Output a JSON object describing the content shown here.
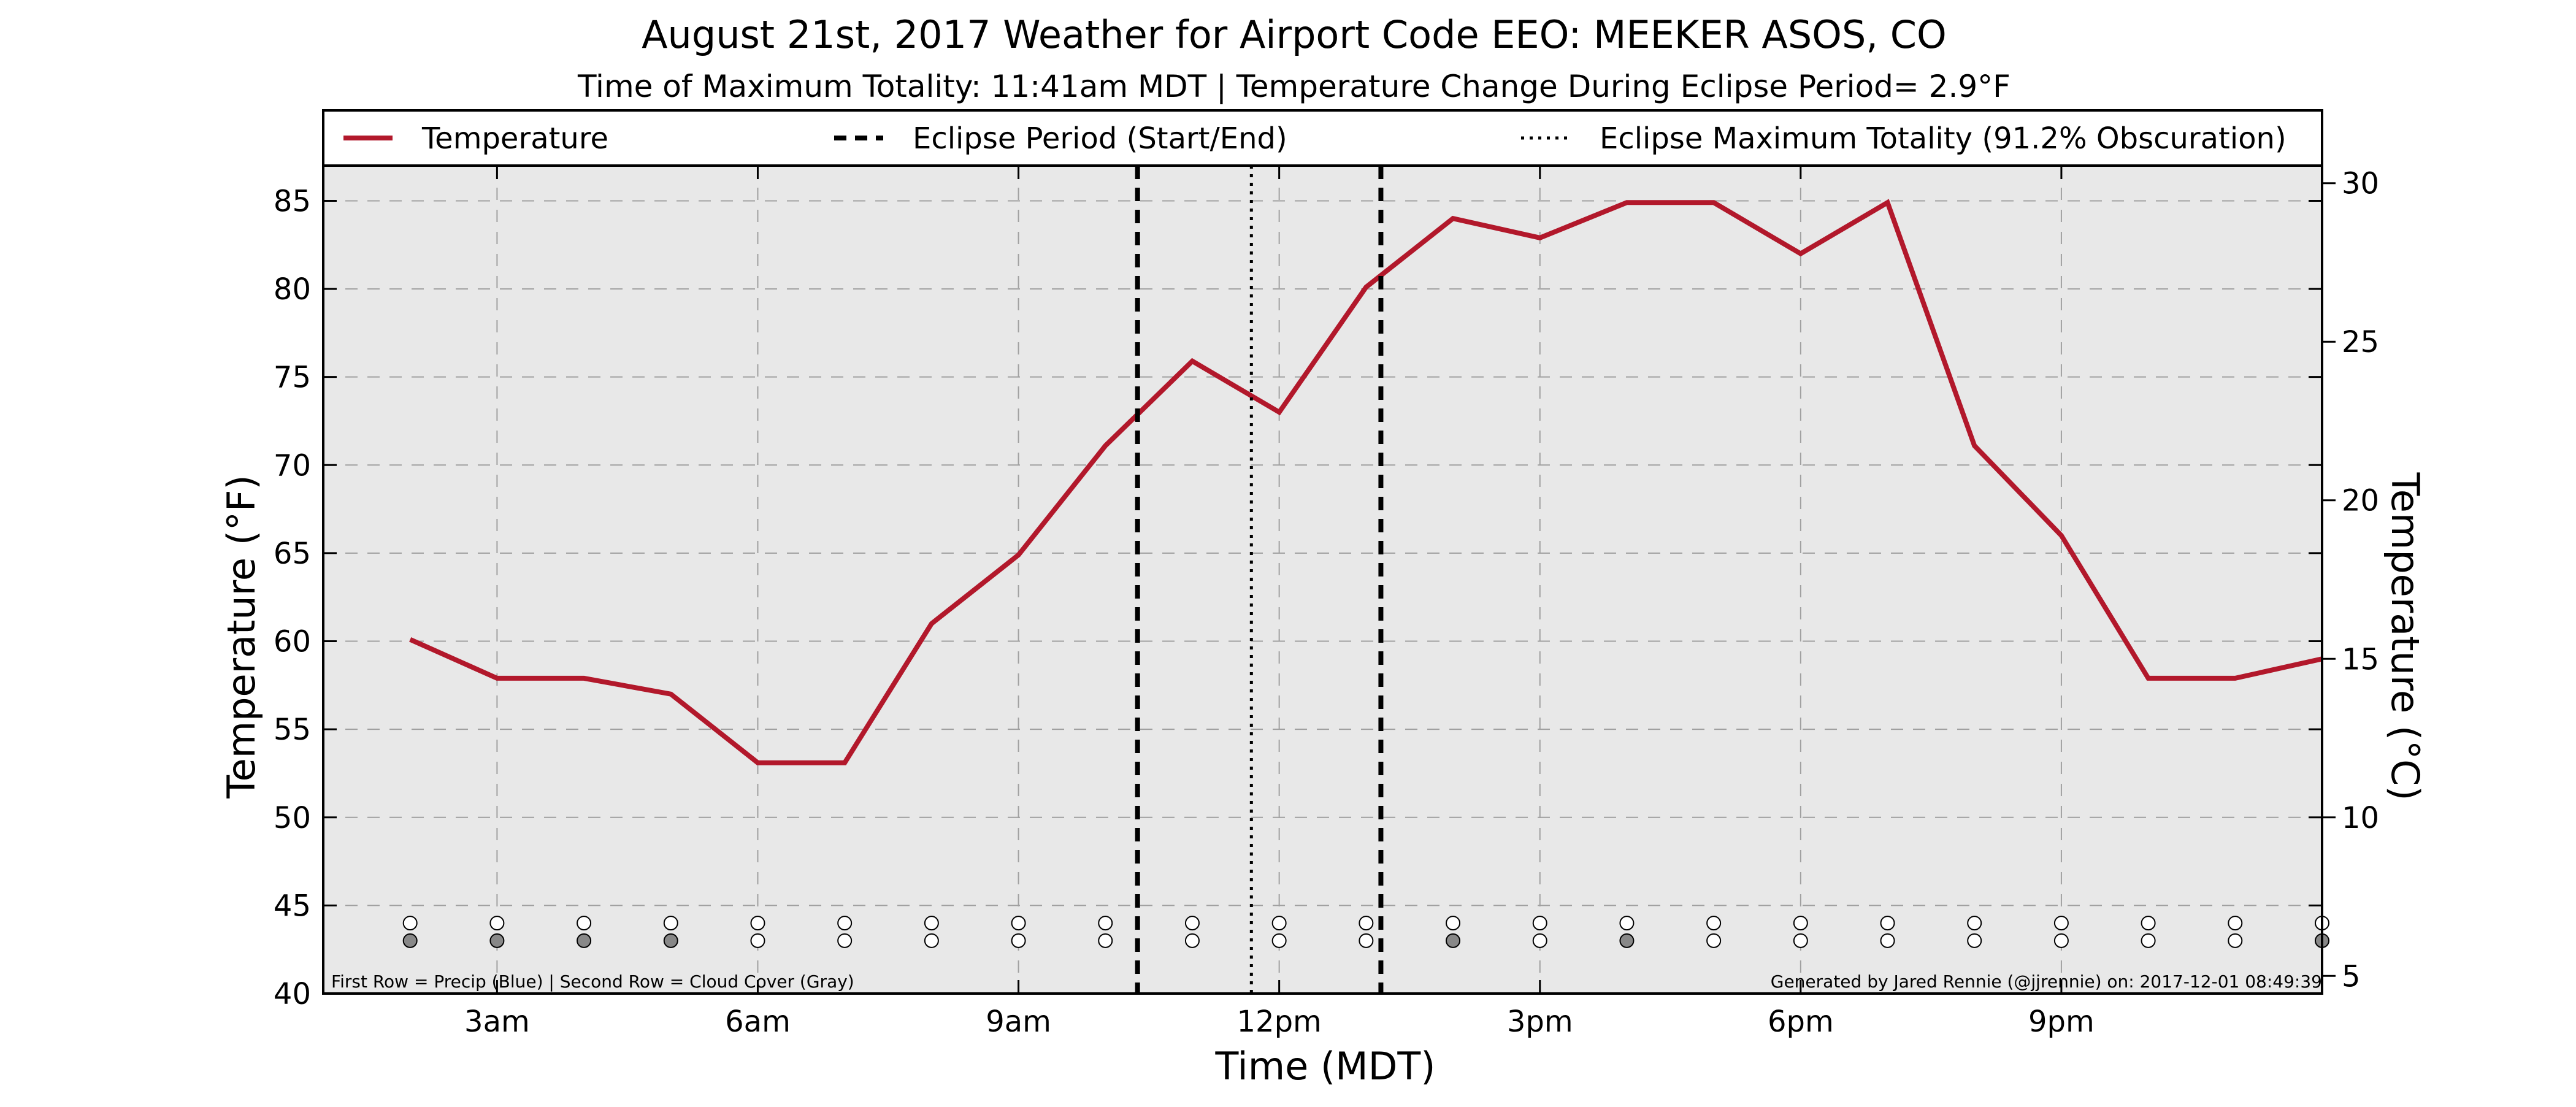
{
  "chart_data": {
    "type": "line",
    "title": "August 21st, 2017 Weather for Airport Code EEO: MEEKER ASOS, CO",
    "subtitle": "Time of Maximum Totality: 11:41am MDT | Temperature Change During Eclipse Period= 2.9°F",
    "xlabel": "Time (MDT)",
    "ylabel": "Temperature (°F)",
    "ylabel_right": "Temperature (°C)",
    "xlim": [
      1,
      24
    ],
    "ylim": [
      40,
      87
    ],
    "ylim_right_celsius": [
      4.444,
      30.556
    ],
    "x_ticks": [
      {
        "value": 3,
        "label": "3am"
      },
      {
        "value": 6,
        "label": "6am"
      },
      {
        "value": 9,
        "label": "9am"
      },
      {
        "value": 12,
        "label": "12pm"
      },
      {
        "value": 15,
        "label": "3pm"
      },
      {
        "value": 18,
        "label": "6pm"
      },
      {
        "value": 21,
        "label": "9pm"
      }
    ],
    "y_ticks": [
      40,
      45,
      50,
      55,
      60,
      65,
      70,
      75,
      80,
      85
    ],
    "y_ticks_right": [
      5,
      10,
      15,
      20,
      25,
      30
    ],
    "grid": true,
    "legend_placement": "top",
    "legend": [
      {
        "label": "Temperature",
        "style": "solid"
      },
      {
        "label": "Eclipse Period (Start/End)",
        "style": "dashed"
      },
      {
        "label": "Eclipse Maximum Totality (91.2% Obscuration)",
        "style": "dotted"
      }
    ],
    "series": [
      {
        "name": "Temperature",
        "color": "#b2182b",
        "x": [
          2,
          3,
          4,
          5,
          6,
          7,
          8,
          9,
          10,
          11,
          12,
          13,
          14,
          15,
          16,
          17,
          18,
          19,
          20,
          21,
          22,
          23,
          24
        ],
        "values": [
          60.1,
          57.9,
          57.9,
          57.0,
          53.1,
          53.1,
          61.0,
          64.9,
          71.1,
          75.9,
          73.0,
          80.1,
          84.0,
          82.9,
          84.9,
          84.9,
          82.0,
          84.9,
          71.1,
          66.0,
          57.9,
          57.9,
          59.0
        ]
      }
    ],
    "eclipse_start": 10.37,
    "eclipse_end": 13.17,
    "eclipse_max": 11.68,
    "indicator_rows": {
      "y_precip": 44,
      "y_cloud": 43,
      "hours": [
        2,
        3,
        4,
        5,
        6,
        7,
        8,
        9,
        10,
        11,
        12,
        13,
        14,
        15,
        16,
        17,
        18,
        19,
        20,
        21,
        22,
        23,
        24
      ],
      "precip": [
        0,
        0,
        0,
        0,
        0,
        0,
        0,
        0,
        0,
        0,
        0,
        0,
        0,
        0,
        0,
        0,
        0,
        0,
        0,
        0,
        0,
        0,
        0
      ],
      "cloud": [
        1,
        1,
        1,
        1,
        0,
        0,
        0,
        0,
        0,
        0,
        0,
        0,
        1,
        0,
        1,
        0,
        0,
        0,
        0,
        0,
        0,
        0,
        1
      ],
      "precip_color": "#3a6fd8",
      "cloud_color": "#888888",
      "empty_color": "#ffffff"
    },
    "footnote_left": "First Row = Precip (Blue) | Second Row = Cloud Cover (Gray)",
    "footnote_right": "Generated by Jared Rennie (@jjrennie) on: 2017-12-01 08:49:39",
    "colors": {
      "background": "#e8e8e8",
      "grid": "#a0a0a0",
      "line": "#b2182b",
      "eclipse": "#000000"
    }
  }
}
